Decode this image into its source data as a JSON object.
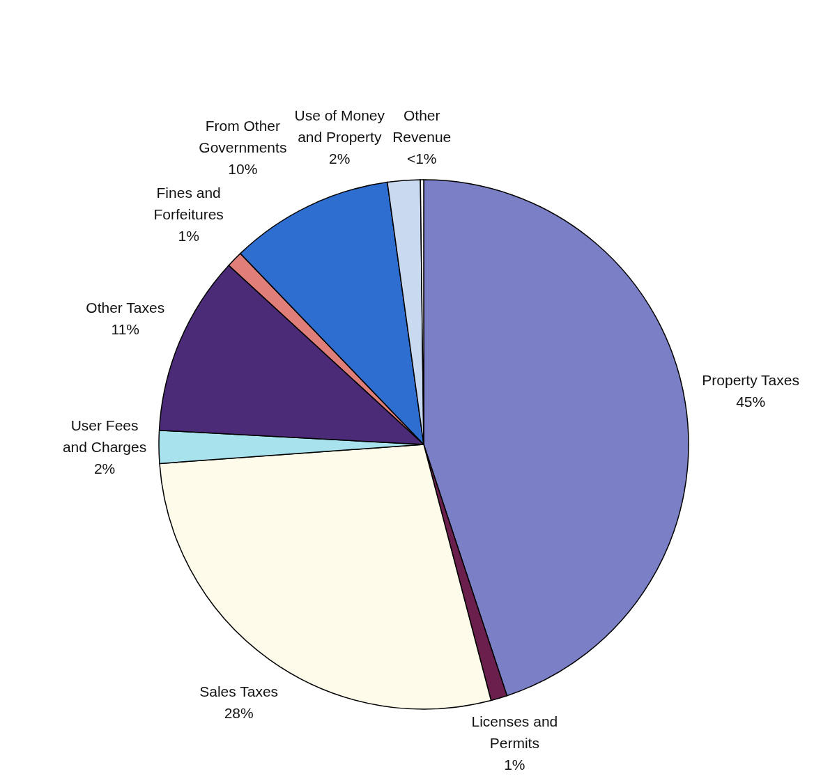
{
  "chart_data": {
    "type": "pie",
    "categories": [
      "Property Taxes",
      "Licenses and Permits",
      "Sales Taxes",
      "User Fees and Charges",
      "Other Taxes",
      "Fines and Forfeitures",
      "From Other Governments",
      "Use of Money and Property",
      "Other Revenue"
    ],
    "values": [
      45,
      1,
      28,
      2,
      11,
      1,
      10,
      2,
      0.2
    ],
    "value_labels": [
      "45%",
      "1%",
      "28%",
      "2%",
      "11%",
      "1%",
      "10%",
      "2%",
      "<1%"
    ],
    "colors": [
      "#7b7fc6",
      "#6a1f4c",
      "#fffbea",
      "#a8e2ec",
      "#4b2a78",
      "#e07f7a",
      "#2e6ed0",
      "#c9d9ef",
      "#ffffff"
    ]
  }
}
